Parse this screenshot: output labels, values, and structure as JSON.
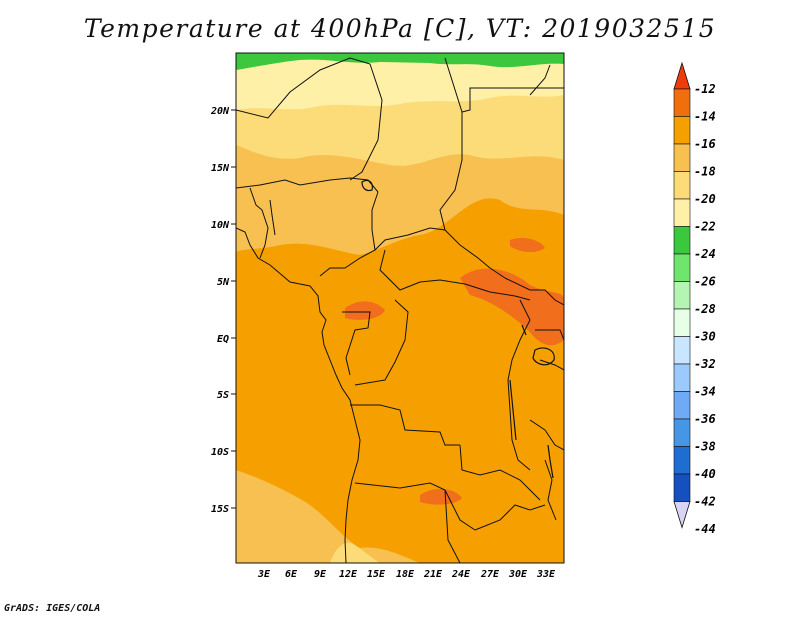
{
  "title": "Temperature at 400hPa [C], VT: 2019032515",
  "credit": "GrADS: IGES/COLA",
  "map": {
    "lat_labels": [
      "20N",
      "15N",
      "10N",
      "5N",
      "EQ",
      "5S",
      "10S",
      "15S"
    ],
    "lon_labels": [
      "3E",
      "6E",
      "9E",
      "12E",
      "15E",
      "18E",
      "21E",
      "24E",
      "27E",
      "30E",
      "33E"
    ],
    "fill_colors": {
      "band_minus23": "#3cc83c",
      "band_minus21": "#fff0a8",
      "band_minus19": "#fbdc78",
      "band_minus17": "#f8c050",
      "band_minus15": "#f5a000",
      "band_minus13": "#f06e1c"
    }
  },
  "colorbar": {
    "labels": [
      "-12",
      "-14",
      "-16",
      "-18",
      "-20",
      "-22",
      "-24",
      "-26",
      "-28",
      "-30",
      "-32",
      "-34",
      "-36",
      "-38",
      "-40",
      "-42",
      "-44"
    ],
    "colors": [
      "#f03c0a",
      "#f06e0e",
      "#f5a000",
      "#f8c050",
      "#fbdc78",
      "#fff0a8",
      "#3cc83c",
      "#6ee66e",
      "#b4f5b4",
      "#e6ffe6",
      "#c8e6ff",
      "#9ccaff",
      "#6eaaf5",
      "#4696e6",
      "#1e6ed2",
      "#1450be",
      "#0a1478"
    ],
    "arrow_low_color": "#d8d4f4"
  }
}
